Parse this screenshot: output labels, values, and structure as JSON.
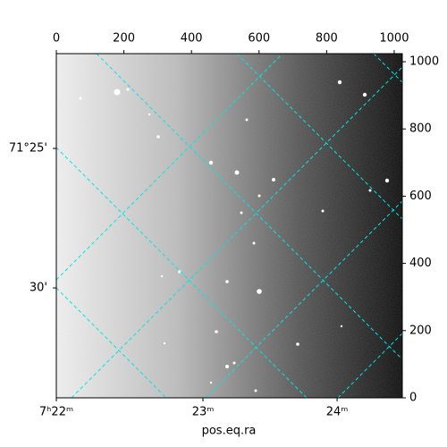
{
  "chart_data": {
    "type": "image",
    "xlabel": "pos.eq.ra",
    "xlim": [
      0,
      1024
    ],
    "xticks": [
      0,
      200,
      400,
      600,
      800,
      1000
    ],
    "ylim": [
      0,
      1024
    ],
    "yticks": [
      0,
      200,
      400,
      600,
      800,
      1000
    ],
    "bottom_ticks": [
      {
        "value": 0,
        "label": "7ʰ22ᵐ"
      },
      {
        "value": 434,
        "label": "23ᵐ"
      },
      {
        "value": 831,
        "label": "24ᵐ"
      }
    ],
    "left_ticks": [
      {
        "value": 742,
        "label": "71°25'"
      },
      {
        "value": 327,
        "label": "30'"
      }
    ]
  }
}
